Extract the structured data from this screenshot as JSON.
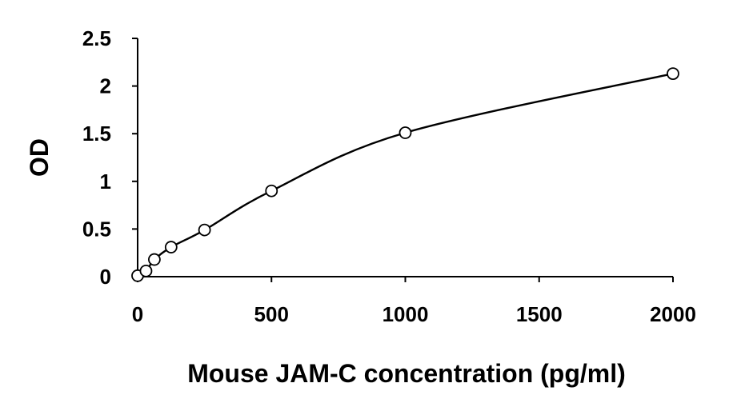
{
  "chart_data": {
    "type": "scatter",
    "title": "",
    "xlabel": "Mouse JAM-C concentration (pg/ml)",
    "ylabel": "OD",
    "xlim": [
      0,
      2000
    ],
    "ylim": [
      0,
      2.5
    ],
    "x_ticks": [
      "0",
      "500",
      "1000",
      "1500",
      "2000"
    ],
    "y_ticks": [
      "0",
      "0.5",
      "1",
      "1.5",
      "2",
      "2.5"
    ],
    "grid": false,
    "legend": "none",
    "series": [
      {
        "x": [
          0,
          31.25,
          62.5,
          125,
          250,
          500,
          1000,
          2000
        ],
        "y": [
          0.01,
          0.06,
          0.18,
          0.31,
          0.49,
          0.9,
          1.51,
          2.13
        ],
        "marker": "open-circle",
        "fit_line": true
      }
    ],
    "colors": {
      "line": "#000000",
      "marker_fill": "#ffffff"
    }
  }
}
